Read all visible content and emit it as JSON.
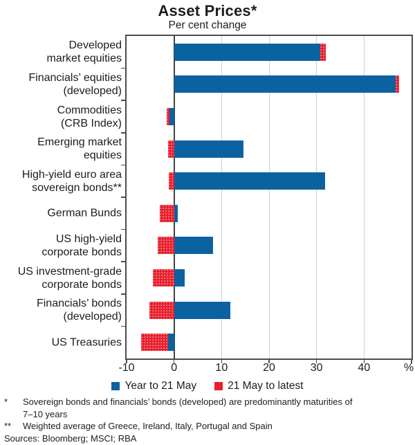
{
  "title": "Asset Prices*",
  "subtitle": "Per cent change",
  "colors": {
    "series_year_blue": "#0b62a1",
    "series_latest_red": "#e81e2c",
    "gridline": "#cfcfcf",
    "zero_line": "#414141",
    "plot_border": "#4c4c4c",
    "text": "#1c1c1c"
  },
  "chart_data": {
    "type": "bar",
    "orientation": "horizontal",
    "title": "Asset Prices*",
    "subtitle": "Per cent change",
    "unit_label": "%",
    "xlim": [
      -10,
      50
    ],
    "gridlines": [
      10,
      20,
      30,
      40
    ],
    "tick_values": [
      -10,
      0,
      10,
      20,
      30,
      40,
      50
    ],
    "xticks": [
      {
        "v": -10,
        "label": "-10"
      },
      {
        "v": 0,
        "label": "0"
      },
      {
        "v": 10,
        "label": "10"
      },
      {
        "v": 20,
        "label": "20"
      },
      {
        "v": 30,
        "label": "30"
      },
      {
        "v": 40,
        "label": "40"
      }
    ],
    "legend_position": "bottom",
    "categories": [
      "Developed market equities",
      "Financials’ equities (developed)",
      "Commodities (CRB Index)",
      "Emerging market equities",
      "High-yield euro area sovereign bonds**",
      "German Bunds",
      "US high-yield corporate bonds",
      "US investment-grade corporate bonds",
      "Financials’ bonds (developed)",
      "US Treasuries"
    ],
    "series": [
      {
        "name": "Year to 21 May",
        "color_key": "series_year_blue",
        "segments": [
          [
            0,
            30.8
          ],
          [
            0,
            46.7
          ],
          [
            -0.9,
            0
          ],
          [
            0,
            14.6
          ],
          [
            0,
            31.8
          ],
          [
            0,
            0.8
          ],
          [
            0,
            8.2
          ],
          [
            0,
            2.3
          ],
          [
            0,
            11.9
          ],
          [
            -1.3,
            0
          ]
        ]
      },
      {
        "name": "21 May to latest",
        "color_key": "series_latest_red",
        "segments": [
          [
            30.8,
            32.0
          ],
          [
            46.7,
            47.4
          ],
          [
            -1.5,
            -0.9
          ],
          [
            -1.2,
            0
          ],
          [
            -1.1,
            0
          ],
          [
            -3.0,
            0
          ],
          [
            -3.5,
            0
          ],
          [
            -4.5,
            0
          ],
          [
            -5.25,
            0
          ],
          [
            -6.9,
            -1.3
          ]
        ]
      }
    ]
  },
  "category_lines": [
    [
      "Developed",
      "market equities"
    ],
    [
      "Financials’ equities",
      "(developed)"
    ],
    [
      "Commodities",
      "(CRB Index)"
    ],
    [
      "Emerging market",
      "equities"
    ],
    [
      "High-yield euro area",
      "sovereign bonds**"
    ],
    [
      "German Bunds"
    ],
    [
      "US high-yield",
      "corporate bonds"
    ],
    [
      "US investment-grade",
      "corporate bonds"
    ],
    [
      "Financials’ bonds",
      "(developed)"
    ],
    [
      "US Treasuries"
    ]
  ],
  "legend": [
    {
      "label": "Year to 21 May",
      "color_key": "series_year_blue",
      "key": "year"
    },
    {
      "label": "21 May to latest",
      "color_key": "series_latest_red",
      "key": "latest"
    }
  ],
  "footnotes": [
    {
      "marker": "*",
      "lines": [
        "Sovereign bonds and financials’ bonds (developed) are predominantly maturities of",
        "7–10 years"
      ]
    },
    {
      "marker": "**",
      "lines": [
        "Weighted average of Greece, Ireland, Italy, Portugal and Spain"
      ]
    }
  ],
  "sources_line": "Sources: Bloomberg; MSCI; RBA"
}
